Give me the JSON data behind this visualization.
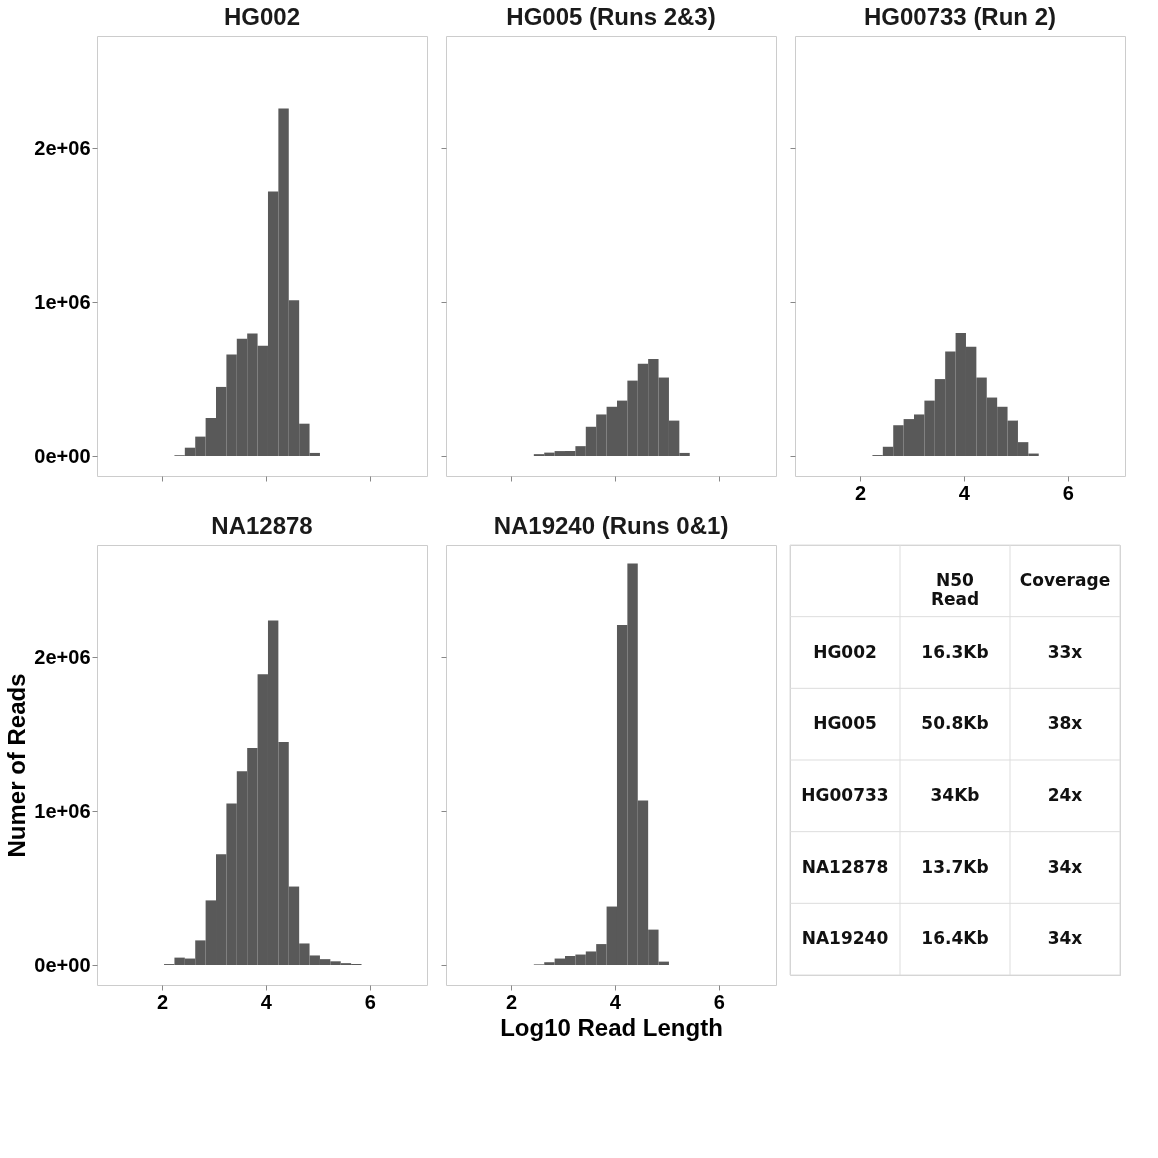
{
  "chart_data": [
    {
      "type": "histogram",
      "title": "HG002",
      "color": "#595959",
      "bins": [
        2.24,
        2.44,
        2.64,
        2.84,
        3.04,
        3.24,
        3.44,
        3.64,
        3.84,
        4.04,
        4.24,
        4.44,
        4.64,
        4.84,
        5.04
      ],
      "values": [
        5000,
        54000,
        126000,
        247000,
        449000,
        659000,
        762000,
        796000,
        717000,
        1719000,
        2259000,
        1012000,
        210000,
        20000
      ],
      "xlim": [
        0.75,
        7.1
      ],
      "xticks": [
        2,
        4,
        6
      ],
      "ylim": [
        -130000,
        2730000
      ],
      "yticks": [
        {
          "value": 0,
          "label": "0e+00"
        },
        {
          "value": 1000000,
          "label": "1e+06"
        },
        {
          "value": 2000000,
          "label": "2e+06"
        }
      ],
      "tick_labels": "y"
    },
    {
      "type": "histogram",
      "title": "HG005 (Runs 2&3)",
      "color": "#595959",
      "bins": [
        2.44,
        2.64,
        2.84,
        3.04,
        3.24,
        3.44,
        3.64,
        3.84,
        4.04,
        4.24,
        4.44,
        4.64,
        4.84,
        5.04,
        5.24,
        5.44
      ],
      "values": [
        12000,
        22000,
        32000,
        32000,
        64000,
        190000,
        270000,
        320000,
        360000,
        490000,
        600000,
        630000,
        510000,
        230000,
        20000
      ],
      "xlim": [
        0.75,
        7.1
      ],
      "xticks": [
        2,
        4,
        6
      ],
      "ylim": [
        -130000,
        2730000
      ],
      "yticks": [
        0,
        1000000,
        2000000
      ],
      "tick_labels": false
    },
    {
      "type": "histogram",
      "title": "HG00733 (Run 2)",
      "color": "#595959",
      "bins": [
        2.24,
        2.44,
        2.64,
        2.84,
        3.04,
        3.24,
        3.44,
        3.64,
        3.84,
        4.04,
        4.24,
        4.44,
        4.64,
        4.84,
        5.04,
        5.24,
        5.44
      ],
      "values": [
        6000,
        60000,
        200000,
        240000,
        270000,
        360000,
        500000,
        680000,
        800000,
        710000,
        510000,
        380000,
        320000,
        230000,
        90000,
        16000
      ],
      "xlim": [
        0.75,
        7.1
      ],
      "xticks": [
        2,
        4,
        6
      ],
      "ylim": [
        -130000,
        2730000
      ],
      "yticks": [
        0,
        1000000,
        2000000
      ],
      "tick_labels": "x"
    },
    {
      "type": "histogram",
      "title": "NA12878",
      "ylabel": "Numer of Reads",
      "color": "#595959",
      "bins": [
        2.04,
        2.24,
        2.44,
        2.64,
        2.84,
        3.04,
        3.24,
        3.44,
        3.64,
        3.84,
        4.04,
        4.24,
        4.44,
        4.64,
        4.84,
        5.04,
        5.24,
        5.44,
        5.64,
        5.84
      ],
      "values": [
        6000,
        48000,
        42000,
        160000,
        420000,
        720000,
        1050000,
        1260000,
        1410000,
        1890000,
        2240000,
        1450000,
        510000,
        140000,
        62000,
        38000,
        24000,
        12000,
        6000
      ],
      "xlim": [
        0.75,
        7.1
      ],
      "xticks": [
        2,
        4,
        6
      ],
      "ylim": [
        -130000,
        2730000
      ],
      "yticks": [
        {
          "value": 0,
          "label": "0e+00"
        },
        {
          "value": 1000000,
          "label": "1e+06"
        },
        {
          "value": 2000000,
          "label": "2e+06"
        }
      ]
    },
    {
      "type": "histogram",
      "title": "NA19240 (Runs 0&1)",
      "xlabel": "Log10 Read Length",
      "color": "#595959",
      "bins": [
        2.44,
        2.64,
        2.84,
        3.04,
        3.24,
        3.44,
        3.64,
        3.84,
        4.04,
        4.24,
        4.44,
        4.64,
        4.84,
        5.04
      ],
      "values": [
        4000,
        18000,
        42000,
        58000,
        68000,
        88000,
        136000,
        380000,
        2210000,
        2610000,
        1070000,
        230000,
        22000
      ],
      "xlim": [
        0.75,
        7.1
      ],
      "xticks": [
        2,
        4,
        6
      ],
      "ylim": [
        -130000,
        2730000
      ],
      "yticks": [
        0,
        1000000,
        2000000
      ],
      "tick_labels": "x"
    },
    {
      "type": "other",
      "categories": [
        null,
        "N50 Read",
        "Coverage"
      ],
      "y_categories": [
        "HG002",
        "HG005",
        "HG00733",
        "NA12878",
        "NA19240"
      ],
      "cell_labels": [
        [
          "16.3Kb",
          "33x"
        ],
        [
          "50.8Kb",
          "38x"
        ],
        [
          "34Kb",
          "24x"
        ],
        [
          "13.7Kb",
          "34x"
        ],
        [
          "16.4Kb",
          "34x"
        ]
      ]
    }
  ]
}
